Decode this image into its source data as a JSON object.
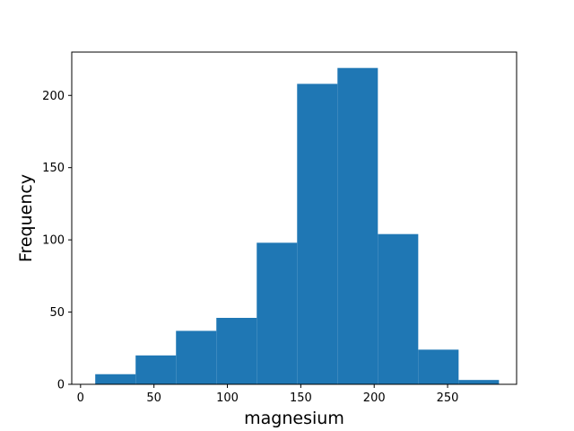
{
  "chart_data": {
    "type": "bar",
    "title": "",
    "xlabel": "magnesium",
    "ylabel": "Frequency",
    "bin_edges": [
      10,
      37.5,
      65,
      92.5,
      120,
      147.5,
      175,
      202.5,
      230,
      257.5,
      285
    ],
    "values": [
      7,
      20,
      37,
      46,
      98,
      208,
      219,
      104,
      24,
      3
    ],
    "xlim": [
      -6,
      297
    ],
    "ylim": [
      0,
      230
    ],
    "xticks": [
      0,
      50,
      100,
      150,
      200,
      250
    ],
    "yticks": [
      0,
      50,
      100,
      150,
      200
    ],
    "grid": false,
    "bar_color": "#1f77b4"
  }
}
